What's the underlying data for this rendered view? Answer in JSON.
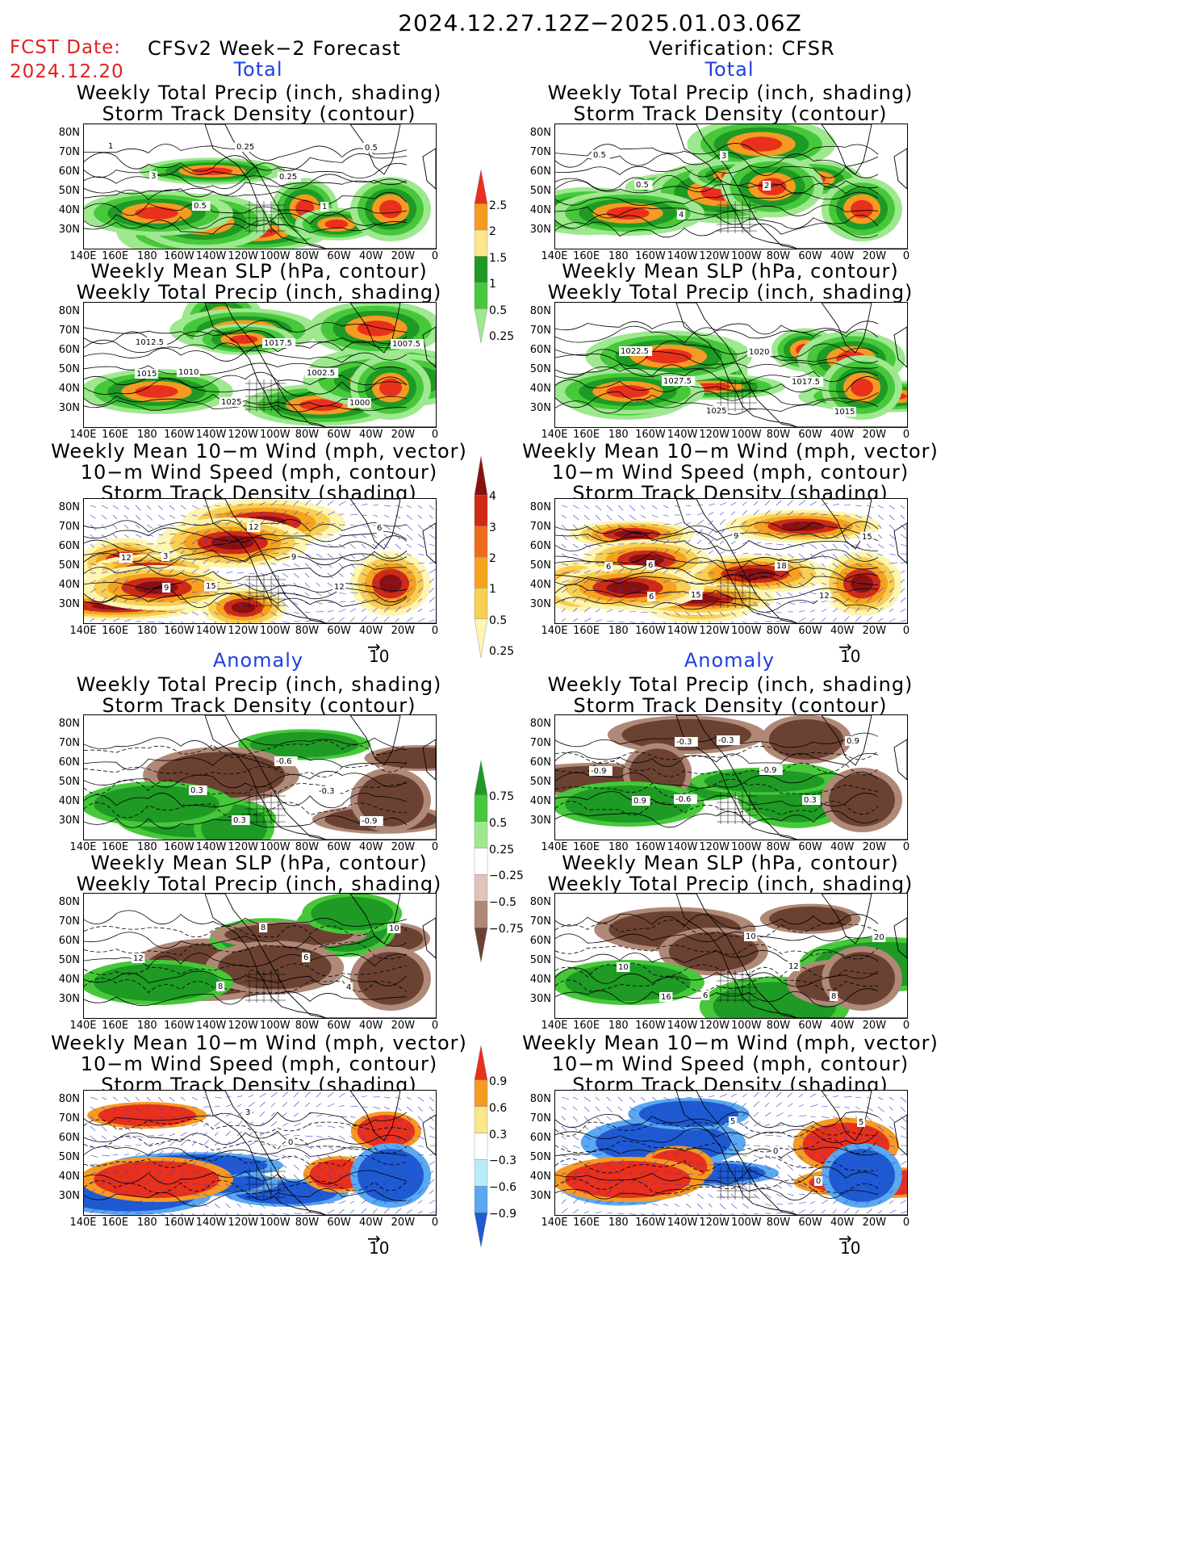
{
  "title": "2024.12.27.12Z−2025.01.03.06Z",
  "fcst_label": "FCST Date:",
  "fcst_date": "2024.12.20",
  "left_header": "CFSv2 Week−2 Forecast",
  "right_header": "Verification: CFSR",
  "sections": {
    "total": "Total",
    "anomaly": "Anomaly"
  },
  "panel_titles": {
    "precip_storm": [
      "Weekly Total Precip (inch, shading)",
      "Storm Track Density (contour)"
    ],
    "slp_precip": [
      "Weekly Mean SLP (hPa, contour)",
      "Weekly Total Precip (inch, shading)"
    ],
    "wind_storm": [
      "Weekly Mean 10−m Wind (mph, vector)",
      "10−m Wind Speed (mph, contour)",
      "Storm Track Density (shading)"
    ]
  },
  "lat_labels": [
    "80N",
    "70N",
    "60N",
    "50N",
    "40N",
    "30N"
  ],
  "lon_labels": [
    "140E",
    "160E",
    "180",
    "160W",
    "140W",
    "120W",
    "100W",
    "80W",
    "60W",
    "40W",
    "20W",
    "0"
  ],
  "vector_ref": "10",
  "colorbars": {
    "precip": {
      "labels": [
        "2.5",
        "2",
        "1.5",
        "1",
        "0.5",
        "0.25"
      ],
      "colors": [
        "#e8301c",
        "#f59a22",
        "#fbe68a",
        "#1e9a25",
        "#46c83a",
        "#9ee890"
      ]
    },
    "storm": {
      "labels": [
        "4",
        "3",
        "2",
        "1",
        "0.5",
        "0.25"
      ],
      "colors": [
        "#8a1010",
        "#d02a15",
        "#ef6a1a",
        "#f5a21e",
        "#f8cf53",
        "#fdf5b0"
      ]
    },
    "precip_anom": {
      "labels": [
        "0.75",
        "0.5",
        "0.25",
        "−0.25",
        "−0.5",
        "−0.75"
      ],
      "colors": [
        "#1e9a25",
        "#46c83a",
        "#9ee890",
        "#ffffff",
        "#e0c4bc",
        "#b08878",
        "#6b4232"
      ]
    },
    "storm_anom": {
      "labels": [
        "0.9",
        "0.6",
        "0.3",
        "−0.3",
        "−0.6",
        "−0.9"
      ],
      "colors": [
        "#e8301c",
        "#f59a22",
        "#fbe68a",
        "#ffffff",
        "#b8ecfa",
        "#5aa8f0",
        "#1e5ad2"
      ]
    }
  },
  "panels": [
    {
      "id": "l-total-precip",
      "scheme": "precip",
      "labels": [
        "1",
        "3",
        "0.5",
        "0.25",
        "0.25",
        "1",
        "0.5"
      ]
    },
    {
      "id": "r-total-precip",
      "scheme": "precip",
      "labels": [
        "0.5",
        "0.5",
        "4",
        "3",
        "2"
      ]
    },
    {
      "id": "l-total-slp",
      "scheme": "precip",
      "labels": [
        "1012.5",
        "1010",
        "1025",
        "1017.5",
        "1002.5",
        "1000",
        "1007.5",
        "1015"
      ]
    },
    {
      "id": "r-total-slp",
      "scheme": "precip",
      "labels": [
        "1022.5",
        "1027.5",
        "1025",
        "1020",
        "1017.5",
        "1015"
      ]
    },
    {
      "id": "l-total-wind",
      "scheme": "storm",
      "labels": [
        "3",
        "15",
        "12",
        "9",
        "12",
        "6",
        "12",
        "9"
      ]
    },
    {
      "id": "r-total-wind",
      "scheme": "storm",
      "labels": [
        "6",
        "15",
        "9",
        "18",
        "12",
        "15",
        "6",
        "6"
      ]
    },
    {
      "id": "l-anom-precip",
      "scheme": "precip_anom",
      "labels": [
        "0.3",
        "0.3",
        "-0.6",
        "-0.3",
        "-0.9"
      ]
    },
    {
      "id": "r-anom-precip",
      "scheme": "precip_anom",
      "labels": [
        "-0.6",
        "-0.3",
        "-0.9",
        "0.3",
        "0.9",
        "-0.9",
        "0.9",
        "-0.3"
      ]
    },
    {
      "id": "l-anom-slp",
      "scheme": "precip_anom",
      "labels": [
        "8",
        "8",
        "6",
        "4",
        "10",
        "12"
      ]
    },
    {
      "id": "r-anom-slp",
      "scheme": "precip_anom",
      "labels": [
        "6",
        "10",
        "12",
        "8",
        "20",
        "10",
        "16"
      ]
    },
    {
      "id": "l-anom-wind",
      "scheme": "storm_anom",
      "labels": [
        "3",
        "0"
      ]
    },
    {
      "id": "r-anom-wind",
      "scheme": "storm_anom",
      "labels": [
        "5",
        "0",
        "0",
        "5"
      ]
    }
  ]
}
